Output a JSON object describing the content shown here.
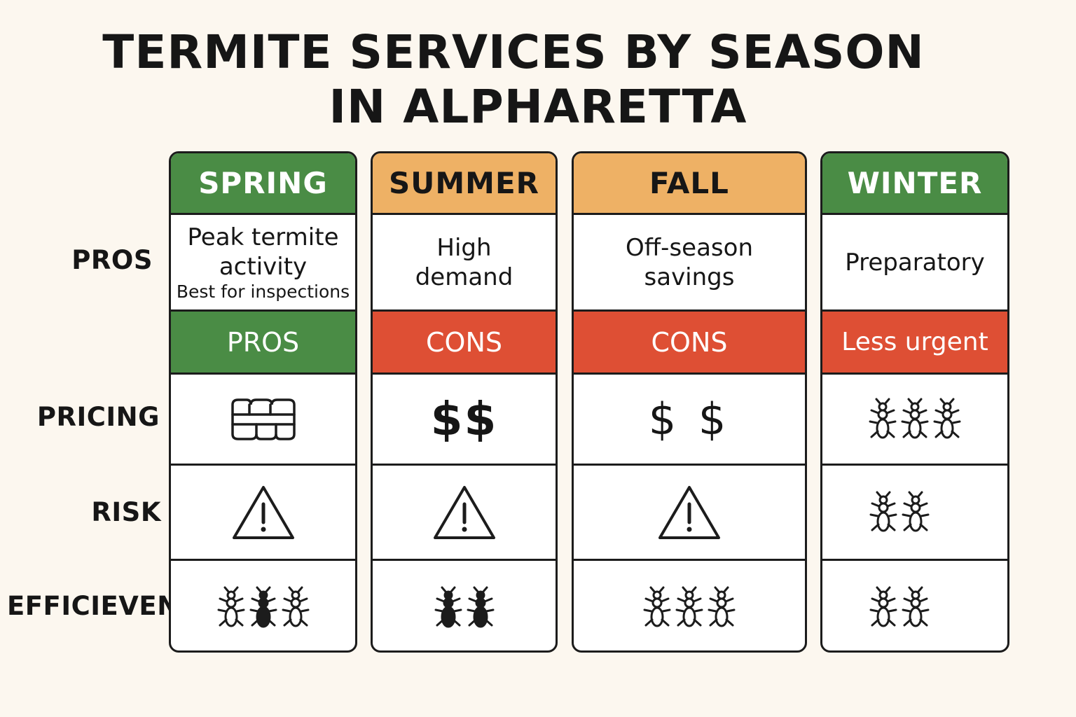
{
  "title": {
    "line1": "TERMITE SERVICES BY SEASON",
    "line2": "IN ALPHARETTA"
  },
  "row_labels": {
    "pros": "PROS",
    "pricing": "PRICING",
    "risk": "RISK",
    "efficiency": "EFFICIEVEN"
  },
  "columns": [
    {
      "season": "SPRING",
      "header_color": "#4a8c45",
      "pros_line1": "Peak termite",
      "pros_line2": "activity",
      "pros_note": "Best for inspections",
      "sub_label": "PROS",
      "sub_color": "#4a8c45",
      "pricing_icon": "stacked-coins-icon",
      "risk_icon": "warning-triangle-icon",
      "efficiency_icons": [
        "termite-outline-icon",
        "termite-filled-icon",
        "termite-outline-icon"
      ]
    },
    {
      "season": "SUMMER",
      "header_color": "#eeb165",
      "pros_line1": "High",
      "pros_line2": "demand",
      "sub_label": "CONS",
      "sub_color": "#de4f34",
      "pricing_text": "$$",
      "risk_icon": "warning-triangle-icon",
      "efficiency_icons": [
        "termite-filled-icon",
        "termite-filled-icon"
      ]
    },
    {
      "season": "FALL",
      "header_color": "#eeb165",
      "pros_line1": "Off-season",
      "pros_line2": "savings",
      "sub_label": "CONS",
      "sub_color": "#de4f34",
      "pricing_text": "$ $",
      "risk_icon": "warning-triangle-icon",
      "efficiency_icons": [
        "termite-outline-icon",
        "termite-outline-icon",
        "termite-outline-icon"
      ]
    },
    {
      "season": "WINTER",
      "header_color": "#4a8c45",
      "pros_line1": "Preparatory",
      "sub_label": "Less urgent",
      "sub_color": "#de4f34",
      "pricing_icons": [
        "termite-outline-icon",
        "termite-outline-icon",
        "termite-outline-icon"
      ],
      "risk_icons": [
        "termite-outline-icon",
        "termite-outline-icon"
      ],
      "efficiency_icons": [
        "termite-outline-icon",
        "termite-outline-icon"
      ]
    }
  ]
}
